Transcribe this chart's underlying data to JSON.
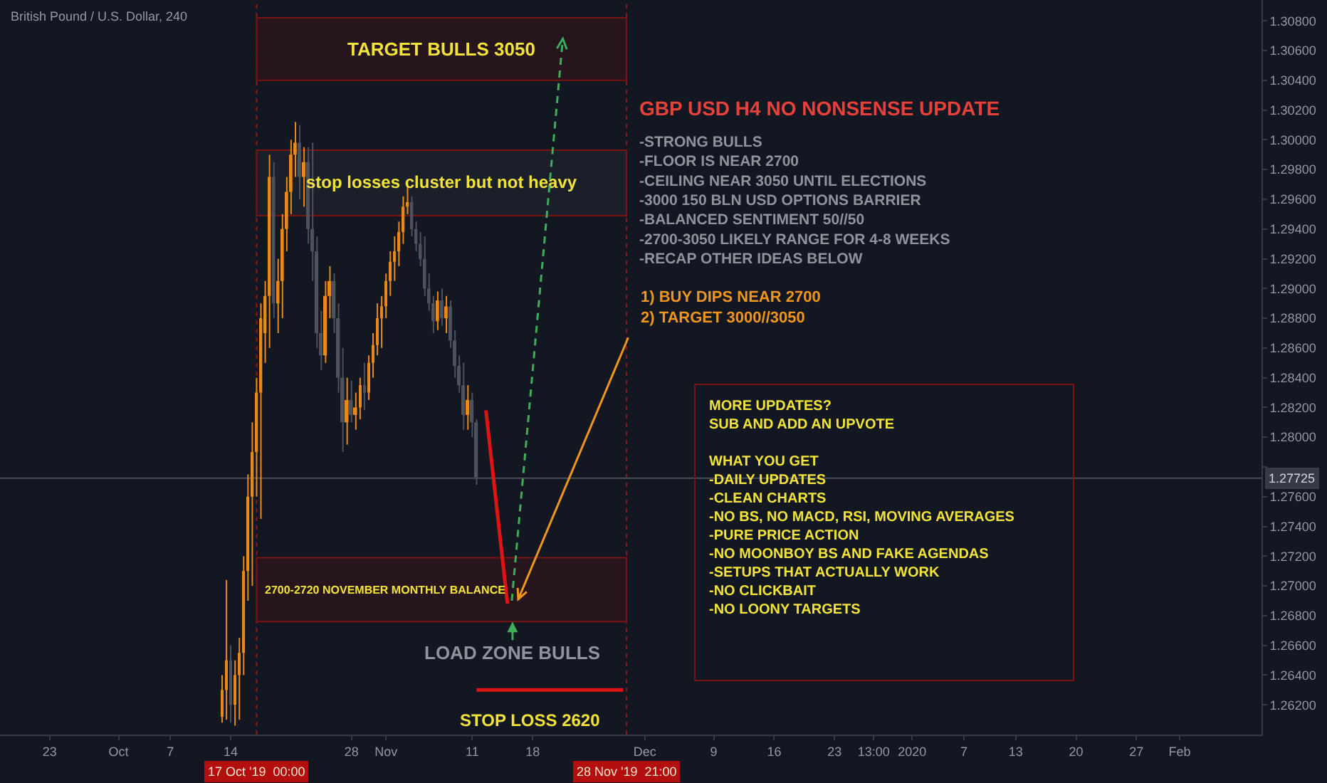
{
  "chart_data": {
    "type": "candlestick",
    "title": "British Pound / U.S. Dollar, 240",
    "xlim": [
      "2019-09-17T06:00",
      "2020-02-10T12:00"
    ],
    "xticks": [
      {
        "value": "2019-09-23",
        "label": "23"
      },
      {
        "value": "2019-10-01",
        "label": "Oct"
      },
      {
        "value": "2019-10-07",
        "label": "7"
      },
      {
        "value": "2019-10-14",
        "label": "14"
      },
      {
        "value": "2019-10-28",
        "label": "28"
      },
      {
        "value": "2019-11-01",
        "label": "Nov"
      },
      {
        "value": "2019-11-11",
        "label": "11"
      },
      {
        "value": "2019-11-18",
        "label": "18"
      },
      {
        "value": "2019-12-01",
        "label": "Dec"
      },
      {
        "value": "2019-12-09",
        "label": "9"
      },
      {
        "value": "2019-12-16",
        "label": "16"
      },
      {
        "value": "2019-12-23",
        "label": "23"
      },
      {
        "value": "2019-12-27T13:00",
        "label": "13:00"
      },
      {
        "value": "2020-01-01",
        "label": "2020"
      },
      {
        "value": "2020-01-07",
        "label": "7"
      },
      {
        "value": "2020-01-13",
        "label": "13"
      },
      {
        "value": "2020-01-20",
        "label": "20"
      },
      {
        "value": "2020-01-27",
        "label": "27"
      },
      {
        "value": "2020-02-01",
        "label": "Feb"
      }
    ],
    "ylim": [
      1.26,
      1.3094
    ],
    "yticks": [
      {
        "value": 1.262,
        "label": "1.26200"
      },
      {
        "value": 1.264,
        "label": "1.26400"
      },
      {
        "value": 1.266,
        "label": "1.26600"
      },
      {
        "value": 1.268,
        "label": "1.26800"
      },
      {
        "value": 1.27,
        "label": "1.27000"
      },
      {
        "value": 1.272,
        "label": "1.27200"
      },
      {
        "value": 1.274,
        "label": "1.27400"
      },
      {
        "value": 1.276,
        "label": "1.27600"
      },
      {
        "value": 1.278,
        "label": null
      },
      {
        "value": 1.28,
        "label": "1.28000"
      },
      {
        "value": 1.282,
        "label": "1.28200"
      },
      {
        "value": 1.284,
        "label": "1.28400"
      },
      {
        "value": 1.286,
        "label": "1.28600"
      },
      {
        "value": 1.288,
        "label": "1.28800"
      },
      {
        "value": 1.29,
        "label": "1.29000"
      },
      {
        "value": 1.292,
        "label": "1.29200"
      },
      {
        "value": 1.294,
        "label": "1.29400"
      },
      {
        "value": 1.296,
        "label": "1.29600"
      },
      {
        "value": 1.298,
        "label": "1.29800"
      },
      {
        "value": 1.3,
        "label": "1.30000"
      },
      {
        "value": 1.302,
        "label": "1.30200"
      },
      {
        "value": 1.304,
        "label": "1.30400"
      },
      {
        "value": 1.306,
        "label": "1.30600"
      },
      {
        "value": 1.308,
        "label": "1.30800"
      }
    ],
    "grid": false,
    "series": [
      {
        "colors": [
          "#e8891c",
          "#e8891c",
          "#4c525e",
          "#e8891c",
          "#e8891c",
          "#e8891c",
          "#e8891c",
          "#e8891c",
          "#e8891c",
          "#e8891c",
          "#e8891c",
          "#e8891c",
          "#4c525e",
          "#e8891c",
          "#e8891c",
          "#e8891c",
          "#e8891c",
          "#e8891c",
          "#4c525e",
          "#e8891c",
          "#4c525e",
          "#4c525e",
          "#4c525e",
          "#4c525e",
          "#e8891c",
          "#e8891c",
          "#4c525e",
          "#4c525e",
          "#4c525e",
          "#e8891c",
          "#4c525e",
          "#e8891c",
          "#e8891c",
          "#4c525e",
          "#e8891c",
          "#e8891c",
          "#e8891c",
          "#e8891c",
          "#e8891c",
          "#e8891c",
          "#e8891c",
          "#e8891c",
          "#e8891c",
          "#e8891c",
          "#4c525e",
          "#4c525e",
          "#4c525e",
          "#4c525e",
          "#4c525e",
          "#4c525e",
          "#e8891c",
          "#4c525e",
          "#e8891c",
          "#4c525e",
          "#4c525e",
          "#4c525e",
          "#4c525e",
          "#e8891c",
          "#4c525e",
          "#4c525e"
        ],
        "x": [
          "2019-10-13T00:00",
          "2019-10-13T12:00",
          "2019-10-14T00:00",
          "2019-10-14T12:00",
          "2019-10-15T00:00",
          "2019-10-15T12:00",
          "2019-10-16T00:00",
          "2019-10-16T12:00",
          "2019-10-17T00:00",
          "2019-10-17T12:00",
          "2019-10-18T00:00",
          "2019-10-18T12:00",
          "2019-10-19T00:00",
          "2019-10-19T12:00",
          "2019-10-20T00:00",
          "2019-10-20T12:00",
          "2019-10-21T00:00",
          "2019-10-21T12:00",
          "2019-10-22T00:00",
          "2019-10-22T12:00",
          "2019-10-23T00:00",
          "2019-10-23T12:00",
          "2019-10-24T00:00",
          "2019-10-24T12:00",
          "2019-10-25T00:00",
          "2019-10-25T12:00",
          "2019-10-26T00:00",
          "2019-10-26T12:00",
          "2019-10-27T00:00",
          "2019-10-27T12:00",
          "2019-10-28T00:00",
          "2019-10-28T12:00",
          "2019-10-29T00:00",
          "2019-10-29T12:00",
          "2019-10-30T00:00",
          "2019-10-30T12:00",
          "2019-10-31T00:00",
          "2019-10-31T12:00",
          "2019-11-01T00:00",
          "2019-11-01T12:00",
          "2019-11-02T00:00",
          "2019-11-02T12:00",
          "2019-11-03T00:00",
          "2019-11-03T12:00",
          "2019-11-04T00:00",
          "2019-11-04T12:00",
          "2019-11-05T00:00",
          "2019-11-05T12:00",
          "2019-11-06T00:00",
          "2019-11-06T12:00",
          "2019-11-07T00:00",
          "2019-11-07T12:00",
          "2019-11-08T00:00",
          "2019-11-08T12:00",
          "2019-11-09T00:00",
          "2019-11-09T12:00",
          "2019-11-10T00:00",
          "2019-11-10T12:00",
          "2019-11-11T00:00",
          "2019-11-11T12:00"
        ],
        "ohlc": [
          [
            1.2612,
            1.264,
            1.2608,
            1.263
          ],
          [
            1.263,
            1.2704,
            1.261,
            1.265
          ],
          [
            1.265,
            1.266,
            1.2608,
            1.262
          ],
          [
            1.262,
            1.265,
            1.2606,
            1.264
          ],
          [
            1.264,
            1.2665,
            1.261,
            1.2655
          ],
          [
            1.2655,
            1.272,
            1.264,
            1.271
          ],
          [
            1.271,
            1.2775,
            1.269,
            1.276
          ],
          [
            1.276,
            1.281,
            1.27,
            1.279
          ],
          [
            1.279,
            1.284,
            1.276,
            1.283
          ],
          [
            1.283,
            1.289,
            1.2745,
            1.288
          ],
          [
            1.287,
            1.2905,
            1.285,
            1.2895
          ],
          [
            1.2895,
            1.299,
            1.286,
            1.2975
          ],
          [
            1.2975,
            1.2985,
            1.288,
            1.289
          ],
          [
            1.289,
            1.292,
            1.287,
            1.2905
          ],
          [
            1.2905,
            1.295,
            1.288,
            1.294
          ],
          [
            1.294,
            1.2975,
            1.2925,
            1.2965
          ],
          [
            1.2965,
            1.3,
            1.295,
            1.299
          ],
          [
            1.299,
            1.3012,
            1.2975,
            1.2998
          ],
          [
            1.2998,
            1.301,
            1.296,
            1.2975
          ],
          [
            1.2975,
            1.2995,
            1.2955,
            1.2985
          ],
          [
            1.2985,
            1.2995,
            1.293,
            1.294
          ],
          [
            1.294,
            1.2998,
            1.2905,
            1.2925
          ],
          [
            1.2925,
            1.2935,
            1.286,
            1.287
          ],
          [
            1.287,
            1.2885,
            1.2845,
            1.2855
          ],
          [
            1.2855,
            1.2905,
            1.285,
            1.2895
          ],
          [
            1.2895,
            1.2915,
            1.288,
            1.2905
          ],
          [
            1.2905,
            1.291,
            1.287,
            1.288
          ],
          [
            1.288,
            1.289,
            1.283,
            1.284
          ],
          [
            1.284,
            1.286,
            1.279,
            1.281
          ],
          [
            1.281,
            1.284,
            1.2795,
            1.2825
          ],
          [
            1.2825,
            1.2838,
            1.281,
            1.2815
          ],
          [
            1.2815,
            1.283,
            1.2805,
            1.282
          ],
          [
            1.282,
            1.284,
            1.2812,
            1.2835
          ],
          [
            1.2835,
            1.285,
            1.2818,
            1.283
          ],
          [
            1.283,
            1.2855,
            1.2825,
            1.285
          ],
          [
            1.285,
            1.287,
            1.284,
            1.2862
          ],
          [
            1.2862,
            1.289,
            1.2855,
            1.288
          ],
          [
            1.288,
            1.2895,
            1.286,
            1.2888
          ],
          [
            1.2888,
            1.291,
            1.288,
            1.2905
          ],
          [
            1.2905,
            1.2925,
            1.2895,
            1.2918
          ],
          [
            1.2918,
            1.2935,
            1.2905,
            1.2925
          ],
          [
            1.2925,
            1.2945,
            1.2915,
            1.2938
          ],
          [
            1.2938,
            1.2962,
            1.293,
            1.2955
          ],
          [
            1.2955,
            1.2969,
            1.295,
            1.2958
          ],
          [
            1.2958,
            1.2962,
            1.2935,
            1.294
          ],
          [
            1.294,
            1.2945,
            1.2925,
            1.293
          ],
          [
            1.293,
            1.2938,
            1.2915,
            1.292
          ],
          [
            1.292,
            1.2935,
            1.2895,
            1.29
          ],
          [
            1.29,
            1.291,
            1.2885,
            1.289
          ],
          [
            1.289,
            1.2895,
            1.287,
            1.2878
          ],
          [
            1.2878,
            1.2898,
            1.2872,
            1.2892
          ],
          [
            1.2892,
            1.29,
            1.2875,
            1.288
          ],
          [
            1.288,
            1.2895,
            1.287,
            1.2888
          ],
          [
            1.2888,
            1.2892,
            1.286,
            1.2865
          ],
          [
            1.2865,
            1.2872,
            1.284,
            1.2848
          ],
          [
            1.2848,
            1.2855,
            1.283,
            1.2835
          ],
          [
            1.2835,
            1.285,
            1.2805,
            1.2815
          ],
          [
            1.2815,
            1.2835,
            1.2805,
            1.2825
          ],
          [
            1.2825,
            1.283,
            1.28,
            1.281
          ],
          [
            1.281,
            1.2812,
            1.2768,
            1.2773
          ]
        ]
      },
      {
        "type": "line",
        "color": "#e01414",
        "line_style": "solid",
        "x": [
          "2019-11-12T14:00",
          "2019-11-15T02:00"
        ],
        "values": [
          1.2818,
          1.2688
        ]
      },
      {
        "type": "line",
        "color": "#e01414",
        "line_style": "solid",
        "x": [
          "2019-11-11T12:00",
          "2019-11-28T12:00"
        ],
        "values": [
          1.263,
          1.263
        ]
      }
    ],
    "ref_lines": [
      {
        "axis": "x",
        "value": "2019-10-17T00:00",
        "label": "17 Oct '19  00:00",
        "color": "#8b1a1a",
        "line_style": "dotted"
      },
      {
        "axis": "x",
        "value": "2019-11-28T21:00",
        "label": "28 Nov '19  21:00",
        "color": "#8b1a1a",
        "line_style": "dotted"
      },
      {
        "axis": "y",
        "value": 1.27725,
        "label": "1.27725",
        "color": "#4a4e59",
        "line_style": "solid"
      }
    ],
    "bands": [
      {
        "axis": "y",
        "from": 1.304,
        "to": 1.3082,
        "label": "TARGET BULLS 3050",
        "color": "#26151d"
      },
      {
        "axis": "y",
        "from": 1.2949,
        "to": 1.2993,
        "label": "stop losses cluster but not heavy",
        "color": "#1b1f2a"
      },
      {
        "axis": "y",
        "from": 1.2676,
        "to": 1.2719,
        "label": "2700-2720 NOVEMBER MONTHLY BALANCE",
        "color": "#26151d"
      }
    ],
    "annotations": [
      "GBP USD H4 NO NONSENSE UPDATE",
      "-STRONG BULLS\n-FLOOR IS NEAR 2700\n-CEILING NEAR 3050 UNTIL ELECTIONS\n-3000 150 BLN USD OPTIONS BARRIER\n-BALANCED SENTIMENT 50//50\n-2700-3050 LIKELY RANGE FOR 4-8 WEEKS\n-RECAP OTHER IDEAS BELOW",
      "1) BUY DIPS NEAR 2700\n2) TARGET 3000//3050",
      "MORE UPDATES?\nSUB AND ADD AN UPVOTE\n\nWHAT YOU GET\n-DAILY UPDATES\n-CLEAN CHARTS\n-NO BS, NO MACD, RSI, MOVING AVERAGES\n-PURE PRICE ACTION\n-NO MOONBOY BS AND FAKE AGENDAS\n-SETUPS THAT ACTUALLY WORK\n-NO CLICKBAIT\n-NO LOONY TARGETS",
      {
        "text": "LOAD ZONE BULLS",
        "x": "2019-11-15T16:00",
        "y": 1.2676
      },
      "STOP LOSS 2620"
    ]
  }
}
